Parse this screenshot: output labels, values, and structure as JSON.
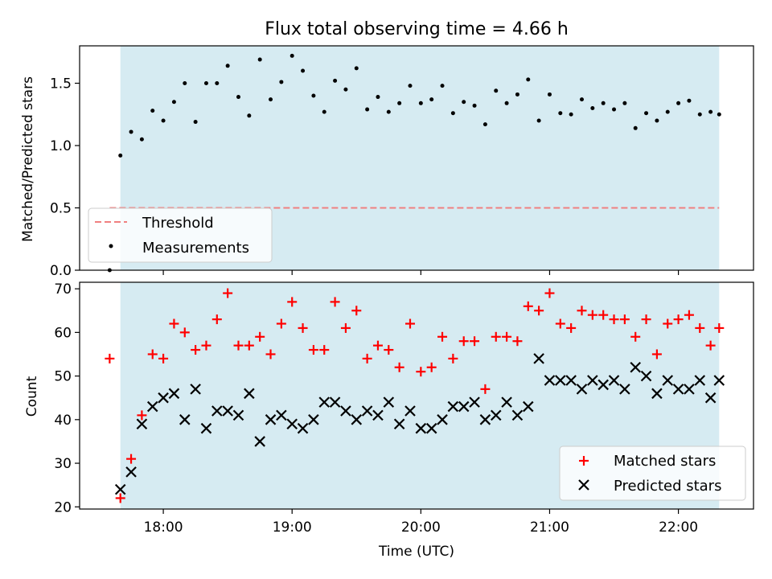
{
  "chart_data": [
    {
      "type": "scatter",
      "title": "Flux total observing time = 4.66 h",
      "ylabel": "Matched/Predicted stars",
      "xlabel": "",
      "xlim": [
        "17:21",
        "22:35"
      ],
      "ylim": [
        0,
        1.8
      ],
      "y_ticks": [
        "0.0",
        "0.5",
        "1.0",
        "1.5"
      ],
      "x_ticks": [
        "18:00",
        "19:00",
        "20:00",
        "21:00",
        "22:00"
      ],
      "x_ticks_labeled": false,
      "shaded_span": [
        "17:40",
        "22:19"
      ],
      "legend_position": "lower-left",
      "threshold": {
        "name": "Threshold",
        "value": 0.5,
        "from": "17:35",
        "to": "22:19",
        "color": "#f08080"
      },
      "series": [
        {
          "name": "Measurements",
          "marker": "dot",
          "color": "#000000",
          "x": [
            "17:35",
            "17:40",
            "17:45",
            "17:50",
            "17:55",
            "18:00",
            "18:05",
            "18:10",
            "18:15",
            "18:20",
            "18:25",
            "18:30",
            "18:35",
            "18:40",
            "18:45",
            "18:50",
            "18:55",
            "19:00",
            "19:05",
            "19:10",
            "19:15",
            "19:20",
            "19:25",
            "19:30",
            "19:35",
            "19:40",
            "19:45",
            "19:50",
            "19:55",
            "20:00",
            "20:05",
            "20:10",
            "20:15",
            "20:20",
            "20:25",
            "20:30",
            "20:35",
            "20:40",
            "20:45",
            "20:50",
            "20:55",
            "21:00",
            "21:05",
            "21:10",
            "21:15",
            "21:20",
            "21:25",
            "21:30",
            "21:35",
            "21:40",
            "21:45",
            "21:50",
            "21:55",
            "22:00",
            "22:05",
            "22:10",
            "22:15",
            "22:19"
          ],
          "y": [
            0.0,
            0.92,
            1.11,
            1.05,
            1.28,
            1.2,
            1.35,
            1.5,
            1.19,
            1.5,
            1.5,
            1.64,
            1.39,
            1.24,
            1.69,
            1.37,
            1.51,
            1.72,
            1.6,
            1.4,
            1.27,
            1.52,
            1.45,
            1.62,
            1.29,
            1.39,
            1.27,
            1.34,
            1.48,
            1.34,
            1.37,
            1.48,
            1.26,
            1.35,
            1.32,
            1.17,
            1.44,
            1.34,
            1.41,
            1.53,
            1.2,
            1.41,
            1.26,
            1.25,
            1.37,
            1.3,
            1.34,
            1.29,
            1.34,
            1.14,
            1.26,
            1.2,
            1.27,
            1.34,
            1.36,
            1.25,
            1.27,
            1.25
          ]
        }
      ]
    },
    {
      "type": "scatter",
      "title": "",
      "ylabel": "Count",
      "xlabel": "Time (UTC)",
      "xlim": [
        "17:21",
        "22:35"
      ],
      "ylim": [
        19.5,
        71.5
      ],
      "y_ticks": [
        "20",
        "30",
        "40",
        "50",
        "60",
        "70"
      ],
      "x_ticks": [
        "18:00",
        "19:00",
        "20:00",
        "21:00",
        "22:00"
      ],
      "shaded_span": [
        "17:40",
        "22:19"
      ],
      "legend_position": "lower-right",
      "series": [
        {
          "name": "Matched stars",
          "marker": "plus",
          "color": "#ff0000",
          "x": [
            "17:35",
            "17:40",
            "17:45",
            "17:50",
            "17:55",
            "18:00",
            "18:05",
            "18:10",
            "18:15",
            "18:20",
            "18:25",
            "18:30",
            "18:35",
            "18:40",
            "18:45",
            "18:50",
            "18:55",
            "19:00",
            "19:05",
            "19:10",
            "19:15",
            "19:20",
            "19:25",
            "19:30",
            "19:35",
            "19:40",
            "19:45",
            "19:50",
            "19:55",
            "20:00",
            "20:05",
            "20:10",
            "20:15",
            "20:20",
            "20:25",
            "20:30",
            "20:35",
            "20:40",
            "20:45",
            "20:50",
            "20:55",
            "21:00",
            "21:05",
            "21:10",
            "21:15",
            "21:20",
            "21:25",
            "21:30",
            "21:35",
            "21:40",
            "21:45",
            "21:50",
            "21:55",
            "22:00",
            "22:05",
            "22:10",
            "22:15",
            "22:19"
          ],
          "y": [
            54,
            22,
            31,
            41,
            55,
            54,
            62,
            60,
            56,
            57,
            63,
            69,
            57,
            57,
            59,
            55,
            62,
            67,
            61,
            56,
            56,
            67,
            61,
            65,
            54,
            57,
            56,
            52,
            62,
            51,
            52,
            59,
            54,
            58,
            58,
            47,
            59,
            59,
            58,
            66,
            65,
            69,
            62,
            61,
            65,
            64,
            64,
            63,
            63,
            59,
            63,
            55,
            62,
            63,
            64,
            61,
            57,
            61
          ]
        },
        {
          "name": "Predicted stars",
          "marker": "x",
          "color": "#000000",
          "x": [
            "17:40",
            "17:45",
            "17:50",
            "17:55",
            "18:00",
            "18:05",
            "18:10",
            "18:15",
            "18:20",
            "18:25",
            "18:30",
            "18:35",
            "18:40",
            "18:45",
            "18:50",
            "18:55",
            "19:00",
            "19:05",
            "19:10",
            "19:15",
            "19:20",
            "19:25",
            "19:30",
            "19:35",
            "19:40",
            "19:45",
            "19:50",
            "19:55",
            "20:00",
            "20:05",
            "20:10",
            "20:15",
            "20:20",
            "20:25",
            "20:30",
            "20:35",
            "20:40",
            "20:45",
            "20:50",
            "20:55",
            "21:00",
            "21:05",
            "21:10",
            "21:15",
            "21:20",
            "21:25",
            "21:30",
            "21:35",
            "21:40",
            "21:45",
            "21:50",
            "21:55",
            "22:00",
            "22:05",
            "22:10",
            "22:15",
            "22:19"
          ],
          "y": [
            24,
            28,
            39,
            43,
            45,
            46,
            40,
            47,
            38,
            42,
            42,
            41,
            46,
            35,
            40,
            41,
            39,
            38,
            40,
            44,
            44,
            42,
            40,
            42,
            41,
            44,
            39,
            42,
            38,
            38,
            40,
            43,
            43,
            44,
            40,
            41,
            44,
            41,
            43,
            54,
            49,
            49,
            49,
            47,
            49,
            48,
            49,
            47,
            52,
            50,
            46,
            49,
            47,
            47,
            49,
            45,
            49
          ]
        }
      ]
    }
  ]
}
